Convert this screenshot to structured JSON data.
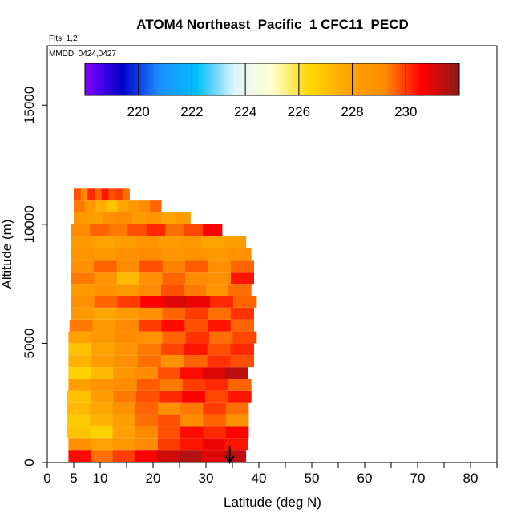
{
  "chart_data": {
    "type": "heatmap",
    "title": "ATOM4 Northeast_Pacific_1 CFC11_PECD",
    "flights_text": "Flts: 1,2",
    "dates_text": "MMDD: 0424,0427",
    "xlabel": "Latitude (deg N)",
    "ylabel": "Altitude (m)",
    "xlim": [
      0,
      85
    ],
    "ylim": [
      0,
      17500
    ],
    "x_major_ticks": [
      0,
      5,
      10,
      20,
      30,
      40,
      50,
      60,
      70,
      80
    ],
    "x_major_tick_labels": [
      "0",
      "5",
      "10",
      "20",
      "30",
      "40",
      "50",
      "60",
      "70",
      "80"
    ],
    "x_minor_ticks": [
      15,
      25,
      35,
      45,
      55,
      65,
      75,
      85
    ],
    "y_ticks": [
      0,
      5000,
      10000,
      15000
    ],
    "y_tick_labels": [
      "0",
      "5000",
      "10000",
      "15000"
    ],
    "colorbar": {
      "min": 218,
      "max": 232,
      "ticks": [
        220,
        222,
        224,
        226,
        228,
        230
      ],
      "tick_labels": [
        "220",
        "222",
        "224",
        "226",
        "228",
        "230"
      ],
      "colors": [
        "#7f00ff",
        "#0000cd",
        "#1e90ff",
        "#00bfff",
        "#e0f4ff",
        "#ffffcc",
        "#ffd700",
        "#ffa500",
        "#ff8c00",
        "#ff0000",
        "#8b1a1a"
      ]
    },
    "layers": [
      {
        "alt_min": 0,
        "alt_max": 500,
        "lat_start": 4.0,
        "lat_end": 37.5,
        "values": [
          230.5,
          229.5,
          230.0,
          230.6,
          231.2,
          231.5,
          231.0,
          231.4
        ]
      },
      {
        "alt_min": 500,
        "alt_max": 1000,
        "lat_start": 4.0,
        "lat_end": 37.8,
        "values": [
          229.0,
          228.0,
          228.6,
          229.2,
          230.0,
          230.4,
          230.8,
          230.4
        ]
      },
      {
        "alt_min": 1000,
        "alt_max": 1500,
        "lat_start": 3.8,
        "lat_end": 38.0,
        "values": [
          227.0,
          226.5,
          228.0,
          229.2,
          229.8,
          230.5,
          230.2,
          230.6
        ]
      },
      {
        "alt_min": 1500,
        "alt_max": 2000,
        "lat_start": 3.8,
        "lat_end": 38.0,
        "values": [
          226.8,
          227.4,
          228.2,
          229.5,
          229.8,
          229.2,
          229.6,
          229.0
        ]
      },
      {
        "alt_min": 2000,
        "alt_max": 2500,
        "lat_start": 3.8,
        "lat_end": 38.0,
        "values": [
          227.2,
          227.8,
          229.0,
          229.6,
          228.9,
          229.4,
          230.0,
          229.5
        ]
      },
      {
        "alt_min": 2500,
        "alt_max": 3000,
        "lat_start": 3.8,
        "lat_end": 38.5,
        "values": [
          227.0,
          228.2,
          229.4,
          229.8,
          230.2,
          230.6,
          229.9,
          230.4
        ]
      },
      {
        "alt_min": 3000,
        "alt_max": 3500,
        "lat_start": 4.0,
        "lat_end": 38.5,
        "values": [
          228.2,
          228.8,
          229.2,
          229.7,
          229.4,
          230.0,
          230.2,
          229.6
        ]
      },
      {
        "alt_min": 3500,
        "alt_max": 4000,
        "lat_start": 4.0,
        "lat_end": 37.8,
        "values": [
          226.5,
          227.2,
          228.6,
          229.2,
          229.8,
          230.5,
          231.0,
          231.4
        ]
      },
      {
        "alt_min": 4000,
        "alt_max": 4500,
        "lat_start": 4.0,
        "lat_end": 39.0,
        "values": [
          227.4,
          228.4,
          229.0,
          229.5,
          229.0,
          229.6,
          230.1,
          229.8
        ]
      },
      {
        "alt_min": 4500,
        "alt_max": 5000,
        "lat_start": 4.0,
        "lat_end": 39.0,
        "values": [
          227.0,
          228.0,
          228.8,
          229.4,
          229.9,
          230.4,
          229.8,
          230.2
        ]
      },
      {
        "alt_min": 5000,
        "alt_max": 5500,
        "lat_start": 4.0,
        "lat_end": 39.5,
        "values": [
          228.0,
          228.6,
          229.2,
          228.8,
          229.6,
          230.1,
          229.5,
          229.9
        ]
      },
      {
        "alt_min": 5500,
        "alt_max": 6000,
        "lat_start": 4.2,
        "lat_end": 39.0,
        "values": [
          229.4,
          228.6,
          229.2,
          230.0,
          230.5,
          229.8,
          230.4,
          229.6
        ]
      },
      {
        "alt_min": 6000,
        "alt_max": 6500,
        "lat_start": 4.5,
        "lat_end": 39.0,
        "values": [
          228.6,
          227.8,
          228.4,
          229.0,
          229.6,
          230.0,
          229.5,
          230.1
        ]
      },
      {
        "alt_min": 6500,
        "alt_max": 7000,
        "lat_start": 4.5,
        "lat_end": 39.5,
        "values": [
          229.0,
          229.6,
          230.0,
          230.6,
          231.0,
          230.8,
          230.2,
          229.6
        ]
      },
      {
        "alt_min": 7000,
        "alt_max": 7500,
        "lat_start": 4.5,
        "lat_end": 38.5,
        "values": [
          228.4,
          229.0,
          228.6,
          229.2,
          229.8,
          229.4,
          228.8,
          229.5
        ]
      },
      {
        "alt_min": 7500,
        "alt_max": 8000,
        "lat_start": 4.5,
        "lat_end": 39.0,
        "values": [
          229.4,
          228.8,
          227.2,
          229.0,
          229.6,
          229.2,
          228.9,
          230.4
        ]
      },
      {
        "alt_min": 8000,
        "alt_max": 8500,
        "lat_start": 4.5,
        "lat_end": 39.0,
        "values": [
          229.0,
          229.6,
          229.2,
          229.8,
          229.3,
          229.7,
          229.1,
          229.6
        ]
      },
      {
        "alt_min": 8500,
        "alt_max": 9000,
        "lat_start": 4.5,
        "lat_end": 38.5,
        "values": [
          228.8,
          228.4,
          228.9,
          229.2,
          228.7,
          229.0,
          228.5,
          228.9
        ]
      },
      {
        "alt_min": 9000,
        "alt_max": 9500,
        "lat_start": 4.5,
        "lat_end": 37.5,
        "values": [
          228.5,
          228.0,
          228.3,
          228.8,
          228.2,
          228.6,
          227.8,
          228.2
        ]
      },
      {
        "alt_min": 9500,
        "alt_max": 10000,
        "lat_start": 4.5,
        "lat_end": 33.0,
        "values": [
          229.2,
          229.6,
          229.4,
          229.8,
          230.2,
          229.5,
          229.9,
          230.6
        ]
      },
      {
        "alt_min": 10000,
        "alt_max": 10500,
        "lat_start": 5.0,
        "lat_end": 27.0,
        "values": [
          228.6,
          228.2,
          228.9,
          229.2,
          228.4,
          228.8,
          227.9,
          228.5
        ]
      },
      {
        "alt_min": 10500,
        "alt_max": 11000,
        "lat_start": 5.0,
        "lat_end": 21.5,
        "values": [
          229.4,
          228.6,
          227.5,
          227.0,
          227.8,
          228.6,
          229.2,
          229.6
        ]
      },
      {
        "alt_min": 11000,
        "alt_max": 11500,
        "lat_start": 5.0,
        "lat_end": 15.5,
        "values": [
          229.8,
          229.2,
          230.2,
          229.6,
          230.4,
          229.8,
          230.0,
          229.5
        ]
      }
    ],
    "arrow_annotation": {
      "lat": 34.5,
      "alt_from": 700,
      "alt_to": 0
    }
  }
}
